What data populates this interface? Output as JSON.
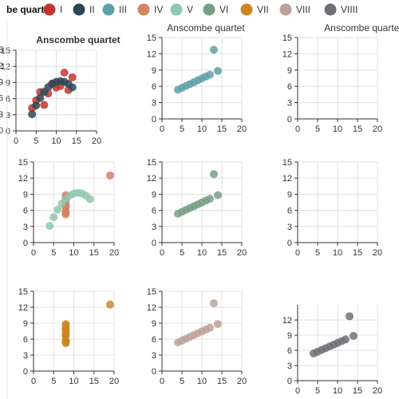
{
  "legend": {
    "title": "be quartet",
    "items": [
      {
        "label": "I",
        "color": "#c23531"
      },
      {
        "label": "II",
        "color": "#2f4554"
      },
      {
        "label": "III",
        "color": "#61a0a8"
      },
      {
        "label": "IV",
        "color": "#d48265"
      },
      {
        "label": "V",
        "color": "#91c7ae"
      },
      {
        "label": "VI",
        "color": "#749f83"
      },
      {
        "label": "VII",
        "color": "#ca8622"
      },
      {
        "label": "VIII",
        "color": "#bda29a"
      },
      {
        "label": "VIIII",
        "color": "#6e7074"
      }
    ]
  },
  "chart_data": [
    {
      "type": "scatter",
      "title": "Anscombe quartet",
      "title_bold": true,
      "xlim": [
        0,
        20
      ],
      "ylim": [
        0,
        15
      ],
      "xticks": [
        0,
        5,
        10,
        15,
        20
      ],
      "yticks": [
        0,
        3,
        6,
        9,
        12,
        15
      ],
      "ytick_labels": [
        "0",
        "3",
        "6",
        "9",
        "12",
        "15"
      ],
      "grid": true,
      "series": [
        {
          "color": "#c23531",
          "points": [
            [
              10,
              8.04
            ],
            [
              8,
              6.95
            ],
            [
              13,
              7.58
            ],
            [
              9,
              8.81
            ],
            [
              11,
              8.33
            ],
            [
              14,
              9.96
            ],
            [
              6,
              7.24
            ],
            [
              4,
              4.26
            ],
            [
              12,
              10.84
            ],
            [
              7,
              4.82
            ],
            [
              5,
              5.68
            ]
          ]
        },
        {
          "color": "#2f4554",
          "points": [
            [
              10,
              9.14
            ],
            [
              8,
              8.14
            ],
            [
              13,
              8.74
            ],
            [
              9,
              8.77
            ],
            [
              11,
              9.26
            ],
            [
              14,
              8.1
            ],
            [
              6,
              6.13
            ],
            [
              4,
              3.1
            ],
            [
              12,
              9.13
            ],
            [
              7,
              7.26
            ],
            [
              5,
              4.74
            ]
          ]
        }
      ]
    },
    {
      "type": "scatter",
      "title": "Anscombe quartet",
      "title_bold": false,
      "xlim": [
        0,
        20
      ],
      "ylim": [
        0,
        15
      ],
      "xticks": [
        0,
        5,
        10,
        15,
        20
      ],
      "yticks": [
        0,
        3,
        6,
        9,
        12,
        15
      ],
      "ytick_labels": [
        "0",
        "3",
        "6",
        "9",
        "12",
        "15"
      ],
      "grid": true,
      "series": [
        {
          "color": "#61a0a8",
          "points": [
            [
              10,
              7.46
            ],
            [
              8,
              6.77
            ],
            [
              13,
              12.74
            ],
            [
              9,
              7.11
            ],
            [
              11,
              7.81
            ],
            [
              14,
              8.84
            ],
            [
              6,
              6.08
            ],
            [
              4,
              5.39
            ],
            [
              12,
              8.15
            ],
            [
              7,
              6.42
            ],
            [
              5,
              5.73
            ]
          ]
        }
      ]
    },
    {
      "type": "scatter",
      "title": "Anscombe quartet",
      "title_bold": false,
      "xlim": [
        0,
        20
      ],
      "ylim": [
        0,
        15
      ],
      "xticks": [
        0,
        5,
        10,
        15,
        20
      ],
      "yticks": [
        0,
        3,
        6,
        9,
        12,
        15
      ],
      "ytick_labels": [
        "0",
        "3",
        "6",
        "9",
        "12",
        "15"
      ],
      "grid": true,
      "series": []
    },
    {
      "type": "scatter",
      "title": "",
      "title_bold": false,
      "xlim": [
        0,
        20
      ],
      "ylim": [
        0,
        15
      ],
      "xticks": [
        0,
        5,
        10,
        15,
        20
      ],
      "yticks": [
        0,
        3,
        6,
        9,
        12,
        15
      ],
      "ytick_labels": [
        "0",
        "3",
        "6",
        "9",
        "12",
        "15"
      ],
      "grid": true,
      "series": [
        {
          "color": "#d48265",
          "points": [
            [
              8,
              6.58
            ],
            [
              8,
              5.76
            ],
            [
              8,
              7.71
            ],
            [
              8,
              8.84
            ],
            [
              8,
              8.47
            ],
            [
              8,
              7.04
            ],
            [
              8,
              5.25
            ],
            [
              19,
              12.5
            ],
            [
              8,
              5.56
            ],
            [
              8,
              7.91
            ],
            [
              8,
              6.89
            ]
          ]
        },
        {
          "color": "#91c7ae",
          "points": [
            [
              10,
              9.14
            ],
            [
              8,
              8.14
            ],
            [
              13,
              8.74
            ],
            [
              9,
              8.77
            ],
            [
              11,
              9.26
            ],
            [
              14,
              8.1
            ],
            [
              6,
              6.13
            ],
            [
              4,
              3.1
            ],
            [
              12,
              9.13
            ],
            [
              7,
              7.26
            ],
            [
              5,
              4.74
            ]
          ]
        }
      ]
    },
    {
      "type": "scatter",
      "title": "",
      "title_bold": false,
      "xlim": [
        0,
        20
      ],
      "ylim": [
        0,
        15
      ],
      "xticks": [
        0,
        5,
        10,
        15,
        20
      ],
      "yticks": [
        0,
        3,
        6,
        9,
        12,
        15
      ],
      "ytick_labels": [
        "0",
        "3",
        "6",
        "9",
        "12",
        "15"
      ],
      "grid": true,
      "series": [
        {
          "color": "#749f83",
          "points": [
            [
              10,
              7.46
            ],
            [
              8,
              6.77
            ],
            [
              13,
              12.74
            ],
            [
              9,
              7.11
            ],
            [
              11,
              7.81
            ],
            [
              14,
              8.84
            ],
            [
              6,
              6.08
            ],
            [
              4,
              5.39
            ],
            [
              12,
              8.15
            ],
            [
              7,
              6.42
            ],
            [
              5,
              5.73
            ]
          ]
        }
      ]
    },
    {
      "type": "scatter",
      "title": "",
      "title_bold": false,
      "xlim": [
        0,
        20
      ],
      "ylim": [
        0,
        15
      ],
      "xticks": [
        0,
        5,
        10,
        15,
        20
      ],
      "yticks": [
        0,
        3,
        6,
        9,
        12,
        15
      ],
      "ytick_labels": [
        "0",
        "3",
        "6",
        "9",
        "12",
        "15"
      ],
      "grid": true,
      "series": []
    },
    {
      "type": "scatter",
      "title": "",
      "title_bold": false,
      "xlim": [
        0,
        20
      ],
      "ylim": [
        0,
        15
      ],
      "xticks": [
        0,
        5,
        10,
        15,
        20
      ],
      "yticks": [
        0,
        3,
        6,
        9,
        12,
        15
      ],
      "ytick_labels": [
        "0",
        "3",
        "6",
        "9",
        "12",
        "15"
      ],
      "grid": true,
      "series": [
        {
          "color": "#ca8622",
          "points": [
            [
              8,
              6.58
            ],
            [
              8,
              5.76
            ],
            [
              8,
              7.71
            ],
            [
              8,
              8.84
            ],
            [
              8,
              8.47
            ],
            [
              8,
              7.04
            ],
            [
              8,
              5.25
            ],
            [
              19,
              12.5
            ],
            [
              8,
              5.56
            ],
            [
              8,
              7.91
            ],
            [
              8,
              6.89
            ]
          ]
        }
      ]
    },
    {
      "type": "scatter",
      "title": "",
      "title_bold": false,
      "xlim": [
        0,
        20
      ],
      "ylim": [
        0,
        15
      ],
      "xticks": [
        0,
        5,
        10,
        15,
        20
      ],
      "yticks": [
        0,
        3,
        6,
        9,
        12,
        15
      ],
      "ytick_labels": [
        "0",
        "3",
        "6",
        "9",
        "12",
        "15"
      ],
      "grid": true,
      "series": [
        {
          "color": "#bda29a",
          "points": [
            [
              10,
              7.46
            ],
            [
              8,
              6.77
            ],
            [
              13,
              12.74
            ],
            [
              9,
              7.11
            ],
            [
              11,
              7.81
            ],
            [
              14,
              8.84
            ],
            [
              6,
              6.08
            ],
            [
              4,
              5.39
            ],
            [
              12,
              8.15
            ],
            [
              7,
              6.42
            ],
            [
              5,
              5.73
            ]
          ]
        }
      ]
    },
    {
      "type": "scatter",
      "title": "",
      "title_bold": false,
      "xlim": [
        0,
        20
      ],
      "ylim": [
        0,
        15
      ],
      "xticks": [
        0,
        5,
        10,
        15,
        20
      ],
      "yticks": [
        0,
        3,
        6,
        9,
        12
      ],
      "ytick_labels": [
        "0",
        "3",
        "6",
        "9",
        "12"
      ],
      "grid": true,
      "series": [
        {
          "color": "#6e7074",
          "points": [
            [
              10,
              7.46
            ],
            [
              8,
              6.77
            ],
            [
              13,
              12.74
            ],
            [
              9,
              7.11
            ],
            [
              11,
              7.81
            ],
            [
              14,
              8.84
            ],
            [
              6,
              6.08
            ],
            [
              4,
              5.39
            ],
            [
              12,
              8.15
            ],
            [
              7,
              6.42
            ],
            [
              5,
              5.73
            ]
          ]
        }
      ]
    }
  ]
}
